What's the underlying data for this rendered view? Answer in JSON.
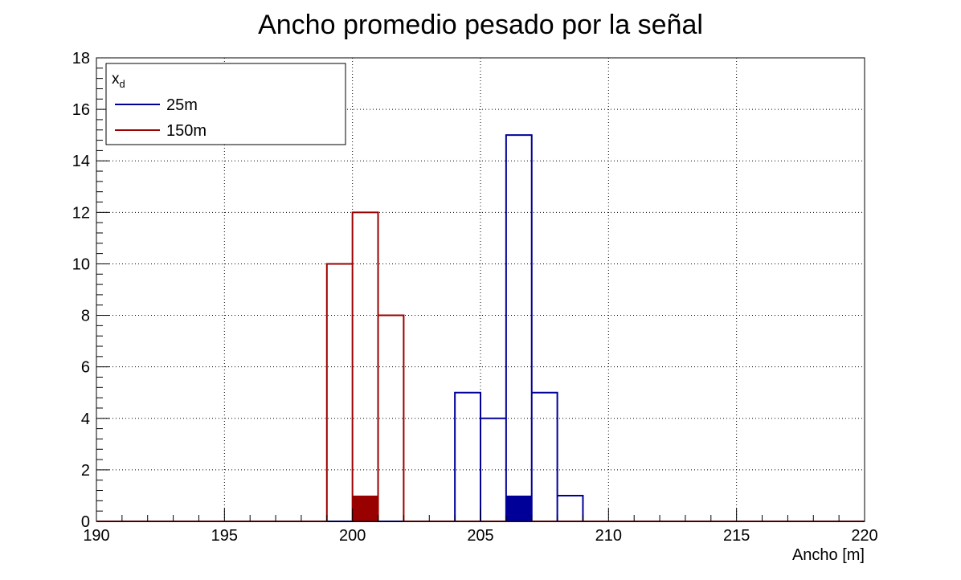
{
  "chart_data": {
    "type": "histogram",
    "title": "Ancho promedio pesado por la señal",
    "xlabel": "Ancho [m]",
    "ylabel": "",
    "xlim": [
      190,
      220
    ],
    "ylim": [
      0,
      18
    ],
    "grid": true,
    "bin_width": 1,
    "x_ticks": [
      190,
      195,
      200,
      205,
      210,
      215,
      220
    ],
    "y_ticks": [
      0,
      2,
      4,
      6,
      8,
      10,
      12,
      14,
      16,
      18
    ],
    "legend": {
      "position": "top-left",
      "title": "x",
      "title_subscript": "d",
      "entries": [
        "25m",
        "150m"
      ]
    },
    "series": [
      {
        "name": "25m",
        "color": "#000099",
        "bins": [
          {
            "x0": 204,
            "x1": 205,
            "count": 5
          },
          {
            "x0": 205,
            "x1": 206,
            "count": 4
          },
          {
            "x0": 206,
            "x1": 207,
            "count": 15
          },
          {
            "x0": 207,
            "x1": 208,
            "count": 5
          },
          {
            "x0": 208,
            "x1": 209,
            "count": 1
          }
        ]
      },
      {
        "name": "150m",
        "color": "#990000",
        "bins": [
          {
            "x0": 199,
            "x1": 200,
            "count": 10
          },
          {
            "x0": 200,
            "x1": 201,
            "count": 12
          },
          {
            "x0": 201,
            "x1": 202,
            "count": 8
          }
        ]
      }
    ],
    "markers": [
      {
        "series": "150m",
        "x0": 200,
        "x1": 201,
        "value": 1,
        "color": "#990000"
      },
      {
        "series": "25m",
        "x0": 206,
        "x1": 207,
        "value": 1,
        "color": "#000099"
      }
    ]
  }
}
